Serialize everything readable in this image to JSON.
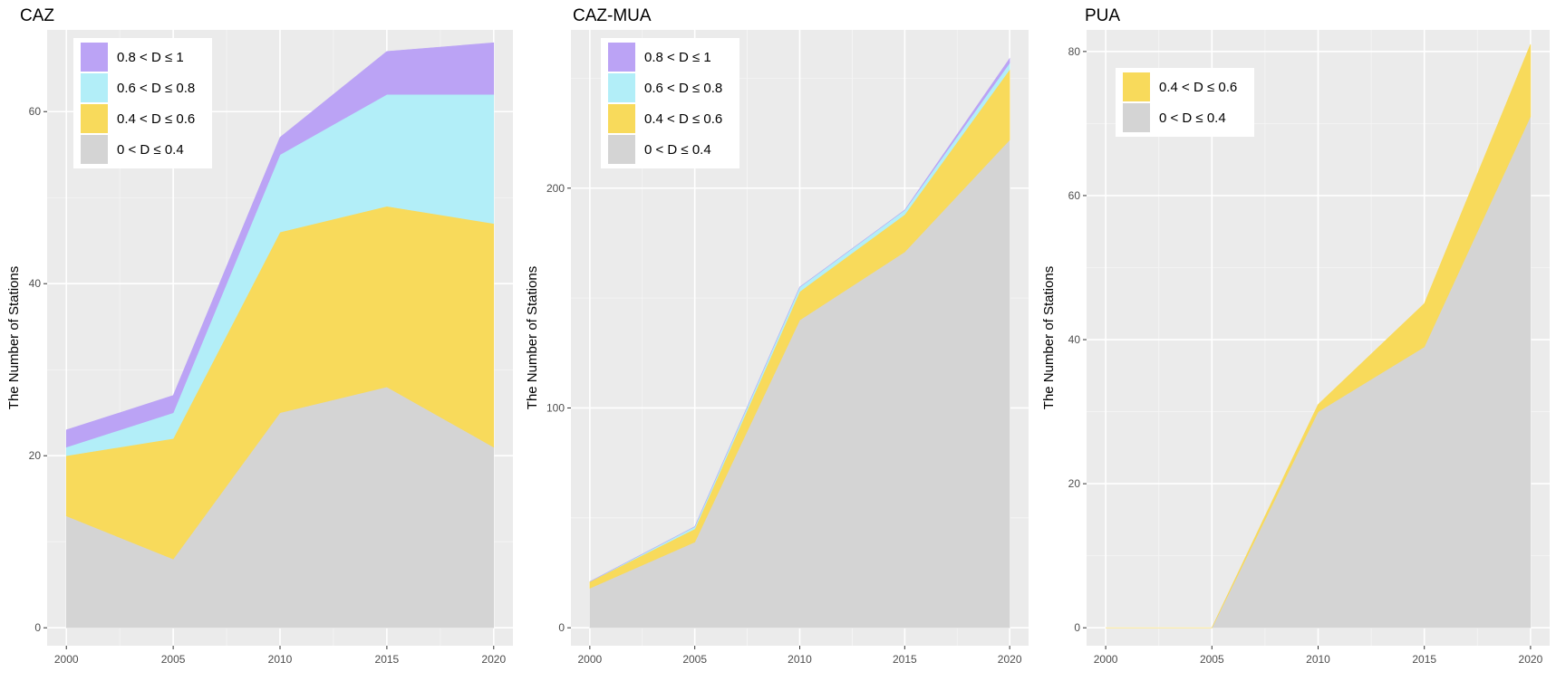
{
  "chart_data": [
    {
      "type": "area",
      "stacked": true,
      "title": "CAZ",
      "xlabel": "",
      "ylabel": "The Number of Stations",
      "x": [
        2000,
        2005,
        2010,
        2015,
        2020
      ],
      "xticks": [
        "2000",
        "2005",
        "2010",
        "2015",
        "2020"
      ],
      "yticks": [
        "0",
        "20",
        "40",
        "60"
      ],
      "ytick_values": [
        0,
        20,
        40,
        60
      ],
      "ylim": [
        0,
        69.5
      ],
      "legend_position": "top-left",
      "series": [
        {
          "name": "0 < D ≤ 0.4",
          "color": "#d4d4d4",
          "values": [
            13,
            8,
            25,
            28,
            21
          ]
        },
        {
          "name": "0.4 < D ≤ 0.6",
          "color": "#f8da5b",
          "values": [
            7,
            14,
            21,
            21,
            26
          ]
        },
        {
          "name": "0.6 < D ≤ 0.8",
          "color": "#b2eef8",
          "values": [
            1,
            3,
            9,
            13,
            15
          ]
        },
        {
          "name": "0.8 < D ≤ 1",
          "color": "#bba3f5",
          "values": [
            2,
            2,
            2,
            5,
            6
          ]
        }
      ]
    },
    {
      "type": "area",
      "stacked": true,
      "title": "CAZ-MUA",
      "xlabel": "",
      "ylabel": "The Number of Stations",
      "x": [
        2000,
        2005,
        2010,
        2015,
        2020
      ],
      "xticks": [
        "2000",
        "2005",
        "2010",
        "2015",
        "2020"
      ],
      "yticks": [
        "0",
        "100",
        "200"
      ],
      "ytick_values": [
        0,
        100,
        200
      ],
      "ylim": [
        0,
        272
      ],
      "legend_position": "top-left",
      "series": [
        {
          "name": "0 < D ≤ 0.4",
          "color": "#d4d4d4",
          "values": [
            18,
            39,
            140,
            171,
            222
          ]
        },
        {
          "name": "0.4 < D ≤ 0.6",
          "color": "#f8da5b",
          "values": [
            3,
            6,
            13,
            17,
            32
          ]
        },
        {
          "name": "0.6 < D ≤ 0.8",
          "color": "#b2eef8",
          "values": [
            0,
            1,
            2,
            2,
            3
          ]
        },
        {
          "name": "0.8 < D ≤ 1",
          "color": "#bba3f5",
          "values": [
            0,
            0,
            0,
            0,
            2
          ]
        }
      ]
    },
    {
      "type": "area",
      "stacked": true,
      "title": "PUA",
      "xlabel": "",
      "ylabel": "The Number of Stations",
      "x": [
        2000,
        2005,
        2010,
        2015,
        2020
      ],
      "xticks": [
        "2000",
        "2005",
        "2010",
        "2015",
        "2020"
      ],
      "yticks": [
        "0",
        "20",
        "40",
        "60",
        "80"
      ],
      "ytick_values": [
        0,
        20,
        40,
        60,
        80
      ],
      "ylim": [
        0,
        83
      ],
      "legend_position": "top-left",
      "series": [
        {
          "name": "0 < D ≤ 0.4",
          "color": "#d4d4d4",
          "values": [
            0,
            0,
            30,
            39,
            71
          ]
        },
        {
          "name": "0.4 < D ≤ 0.6",
          "color": "#f8da5b",
          "values": [
            0,
            0,
            1,
            6,
            10
          ]
        }
      ]
    }
  ]
}
